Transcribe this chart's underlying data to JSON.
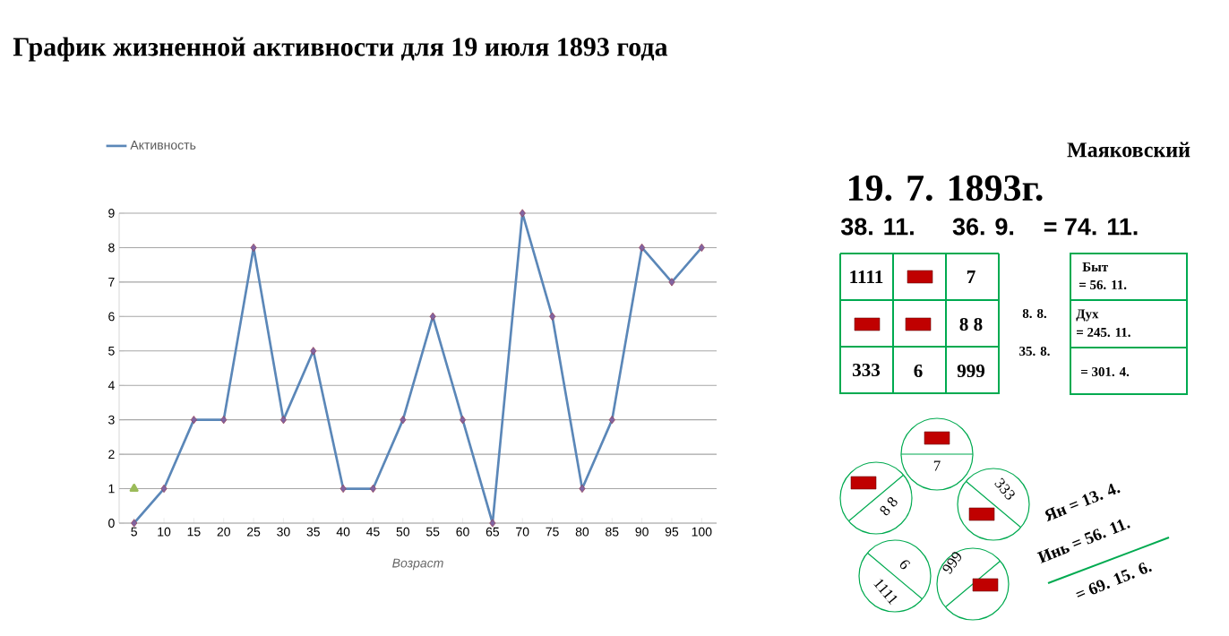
{
  "chart_data": [
    {
      "type": "line",
      "title": "График жизненной активности для  19 июля 1893 года",
      "xlabel": "Возраст",
      "categories": [
        "5",
        "10",
        "15",
        "20",
        "25",
        "30",
        "35",
        "40",
        "45",
        "50",
        "55",
        "60",
        "65",
        "70",
        "75",
        "80",
        "85",
        "90",
        "95",
        "100"
      ],
      "series": [
        {
          "name": "Активность",
          "color": "#5b87b8",
          "marker": "diamond",
          "values": [
            0,
            1,
            3,
            3,
            8,
            3,
            5,
            1,
            1,
            3,
            6,
            3,
            0,
            9,
            6,
            1,
            3,
            8,
            7,
            8
          ]
        },
        {
          "type": "scatter",
          "color": "#9bbb59",
          "marker": "triangle",
          "values": [
            1,
            null,
            null,
            null,
            null,
            null,
            null,
            null,
            null,
            null,
            null,
            null,
            null,
            null,
            null,
            null,
            null,
            null,
            null,
            null
          ]
        }
      ],
      "ylim": [
        0,
        9
      ],
      "yticks": [
        0,
        1,
        2,
        3,
        4,
        5,
        6,
        7,
        8,
        9
      ],
      "grid": "y",
      "legend": "top left"
    },
    {
      "type": "other",
      "annotations": [
        "Маяковский",
        "19. 7. 1893г.",
        "38. 11.",
        "36. 9.",
        "= 74. 11.",
        "1111",
        "7",
        "8 8",
        "333",
        "6",
        "999",
        "8. 8.",
        "35. 8.",
        "Быт",
        "= 56. 11.",
        "Дух",
        "= 245. 11.",
        "= 301. 4.",
        "7",
        "8 8",
        "333",
        "6",
        "1111",
        "999",
        "Ян = 13. 4.",
        "Инь = 56. 11.",
        "= 69. 15. 6."
      ]
    }
  ]
}
